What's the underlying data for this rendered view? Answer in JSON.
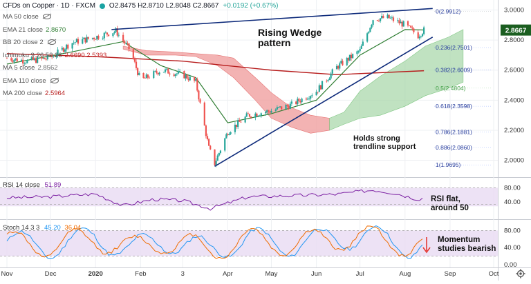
{
  "header": {
    "symbol": "CFDs on Copper · 1D · FXCM",
    "ohlc": "O2.8475  H2.8710  L2.8048  C2.8667",
    "change": "+0.0192 (+0.67%)"
  },
  "legend": [
    {
      "label": "MA 50 close",
      "value": "",
      "color": "#6d6d6d",
      "hidden": true
    },
    {
      "label": "EMA 21 close",
      "value": "2.8670",
      "color": "#2e7d32",
      "hidden": false
    },
    {
      "label": "BB 20 close 2",
      "value": "",
      "color": "#6d6d6d",
      "hidden": true
    },
    {
      "label": "Ichimoku 9 26 52 26",
      "value": "2.6690  2.5393",
      "color": "#c62828",
      "hidden": false
    },
    {
      "label": "MA 5 close",
      "value": "2.8562",
      "color": "#6d6d6d",
      "hidden": false
    },
    {
      "label": "EMA 110 close",
      "value": "",
      "color": "#6d6d6d",
      "hidden": true
    },
    {
      "label": "MA 200 close",
      "value": "2.5964",
      "color": "#b71c1c",
      "hidden": false
    }
  ],
  "annotations": {
    "wedge": "Rising Wedge\npattern",
    "trendline": "Holds strong\ntrendline support",
    "rsi": "RSI flat,\naround 50",
    "momentum": "Momentum\nstudies bearish"
  },
  "price_tag": "2.8667",
  "fib_levels": [
    {
      "label": "0(2.9912)",
      "value": 2.9912
    },
    {
      "label": "0.236(2.7501)",
      "value": 2.7501
    },
    {
      "label": "0.382(2.6009)",
      "value": 2.6009
    },
    {
      "label": "0.5(2.4804)",
      "value": 2.4804
    },
    {
      "label": "0.618(2.3598)",
      "value": 2.3598
    },
    {
      "label": "0.786(2.1881)",
      "value": 2.1881
    },
    {
      "label": "0.886(2.0860)",
      "value": 2.086
    },
    {
      "label": "1(1.9695)",
      "value": 1.9695
    }
  ],
  "rsi_label": "RSI 14 close",
  "rsi_value": "51.89",
  "stoch_label": "Stoch 14 3 3",
  "stoch_k": "45.20",
  "stoch_d": "36.04",
  "colors": {
    "up": "#26a69a",
    "down": "#ef5350",
    "ema21": "#2e7d32",
    "ma200": "#b71c1c",
    "wedge": "#0d2a7a",
    "cloud_bull": "#a5d6a7",
    "cloud_bear": "#ef9a9a",
    "rsi": "#7b1fa2",
    "stoch_k": "#2196f3",
    "stoch_d": "#ef6c00"
  },
  "chart_data": [
    {
      "type": "candlestick",
      "title": "CFDs on Copper · 1D · FXCM",
      "x_tick_labels": [
        "Nov",
        "Dec",
        "2020",
        "Feb",
        "3",
        "Apr",
        "May",
        "Jun",
        "Jul",
        "Aug",
        "Sep",
        "Oct"
      ],
      "y_tick_labels": [
        "3.0000",
        "2.8000",
        "2.6000",
        "2.4000",
        "2.2000",
        "2.0000"
      ],
      "ylim": [
        1.92,
        3.03
      ],
      "last_close": 2.8667,
      "price_path": [
        {
          "date": "2019-11-01",
          "close": 2.68
        },
        {
          "date": "2019-11-15",
          "close": 2.66
        },
        {
          "date": "2019-12-01",
          "close": 2.68
        },
        {
          "date": "2019-12-15",
          "close": 2.78
        },
        {
          "date": "2020-01-01",
          "close": 2.82
        },
        {
          "date": "2020-01-15",
          "close": 2.86
        },
        {
          "date": "2020-01-25",
          "close": 2.73
        },
        {
          "date": "2020-02-01",
          "close": 2.53
        },
        {
          "date": "2020-02-15",
          "close": 2.6
        },
        {
          "date": "2020-03-01",
          "close": 2.57
        },
        {
          "date": "2020-03-10",
          "close": 2.52
        },
        {
          "date": "2020-03-19",
          "close": 2.08
        },
        {
          "date": "2020-03-23",
          "close": 1.98
        },
        {
          "date": "2020-04-01",
          "close": 2.19
        },
        {
          "date": "2020-04-15",
          "close": 2.3
        },
        {
          "date": "2020-05-01",
          "close": 2.33
        },
        {
          "date": "2020-05-15",
          "close": 2.37
        },
        {
          "date": "2020-06-01",
          "close": 2.46
        },
        {
          "date": "2020-06-15",
          "close": 2.62
        },
        {
          "date": "2020-07-01",
          "close": 2.73
        },
        {
          "date": "2020-07-10",
          "close": 2.94
        },
        {
          "date": "2020-07-20",
          "close": 2.95
        },
        {
          "date": "2020-08-01",
          "close": 2.9
        },
        {
          "date": "2020-08-10",
          "close": 2.83
        },
        {
          "date": "2020-08-14",
          "close": 2.8667
        }
      ],
      "ema21": [
        {
          "date": "2019-11-01",
          "value": 2.64
        },
        {
          "date": "2019-12-15",
          "value": 2.72
        },
        {
          "date": "2020-01-20",
          "value": 2.79
        },
        {
          "date": "2020-02-15",
          "value": 2.63
        },
        {
          "date": "2020-03-10",
          "value": 2.55
        },
        {
          "date": "2020-04-01",
          "value": 2.25
        },
        {
          "date": "2020-05-01",
          "value": 2.31
        },
        {
          "date": "2020-06-01",
          "value": 2.4
        },
        {
          "date": "2020-07-01",
          "value": 2.7
        },
        {
          "date": "2020-08-01",
          "value": 2.87
        },
        {
          "date": "2020-08-14",
          "value": 2.867
        }
      ],
      "ma200": [
        {
          "date": "2019-11-01",
          "value": 2.71
        },
        {
          "date": "2020-01-01",
          "value": 2.69
        },
        {
          "date": "2020-03-01",
          "value": 2.66
        },
        {
          "date": "2020-05-01",
          "value": 2.6
        },
        {
          "date": "2020-06-15",
          "value": 2.57
        },
        {
          "date": "2020-08-14",
          "value": 2.596
        }
      ],
      "wedge_lines": [
        {
          "name": "upper",
          "start": {
            "date": "2020-01-12",
            "value": 2.87
          },
          "end": {
            "date": "2020-08-20",
            "value": 3.01
          }
        },
        {
          "name": "lower",
          "start": {
            "date": "2020-03-23",
            "value": 1.96
          },
          "end": {
            "date": "2020-08-20",
            "value": 2.82
          }
        }
      ]
    },
    {
      "type": "line",
      "title": "RSI 14 close",
      "y_tick_labels": [
        "80.00",
        "40.00"
      ],
      "ylim": [
        0,
        100
      ],
      "last_value": 51.89,
      "series": [
        {
          "name": "RSI 14 close",
          "values": [
            {
              "date": "2019-11-01",
              "value": 52
            },
            {
              "date": "2019-12-01",
              "value": 55
            },
            {
              "date": "2020-01-01",
              "value": 63
            },
            {
              "date": "2020-01-20",
              "value": 30
            },
            {
              "date": "2020-02-10",
              "value": 48
            },
            {
              "date": "2020-03-01",
              "value": 44
            },
            {
              "date": "2020-03-20",
              "value": 22
            },
            {
              "date": "2020-04-15",
              "value": 55
            },
            {
              "date": "2020-05-15",
              "value": 58
            },
            {
              "date": "2020-06-15",
              "value": 62
            },
            {
              "date": "2020-07-10",
              "value": 74
            },
            {
              "date": "2020-07-25",
              "value": 65
            },
            {
              "date": "2020-08-10",
              "value": 48
            },
            {
              "date": "2020-08-14",
              "value": 51.89
            }
          ]
        }
      ]
    },
    {
      "type": "line",
      "title": "Stoch 14 3 3",
      "y_tick_labels": [
        "80.00",
        "40.00",
        "0.00"
      ],
      "ylim": [
        0,
        100
      ],
      "series": [
        {
          "name": "%K",
          "last_value": 45.2,
          "values": [
            {
              "date": "2019-11-01",
              "value": 60
            },
            {
              "date": "2019-12-01",
              "value": 30
            },
            {
              "date": "2020-01-01",
              "value": 85
            },
            {
              "date": "2020-01-25",
              "value": 10
            },
            {
              "date": "2020-02-15",
              "value": 70
            },
            {
              "date": "2020-03-20",
              "value": 8
            },
            {
              "date": "2020-04-15",
              "value": 75
            },
            {
              "date": "2020-05-15",
              "value": 40
            },
            {
              "date": "2020-06-15",
              "value": 85
            },
            {
              "date": "2020-07-10",
              "value": 88
            },
            {
              "date": "2020-08-05",
              "value": 30
            },
            {
              "date": "2020-08-14",
              "value": 45.2
            }
          ]
        },
        {
          "name": "%D",
          "last_value": 36.04,
          "values": [
            {
              "date": "2019-11-01",
              "value": 55
            },
            {
              "date": "2019-12-01",
              "value": 35
            },
            {
              "date": "2020-01-01",
              "value": 80
            },
            {
              "date": "2020-01-25",
              "value": 15
            },
            {
              "date": "2020-02-15",
              "value": 65
            },
            {
              "date": "2020-03-20",
              "value": 12
            },
            {
              "date": "2020-04-15",
              "value": 70
            },
            {
              "date": "2020-05-15",
              "value": 45
            },
            {
              "date": "2020-06-15",
              "value": 80
            },
            {
              "date": "2020-07-10",
              "value": 85
            },
            {
              "date": "2020-08-05",
              "value": 35
            },
            {
              "date": "2020-08-14",
              "value": 36.04
            }
          ]
        }
      ]
    }
  ]
}
